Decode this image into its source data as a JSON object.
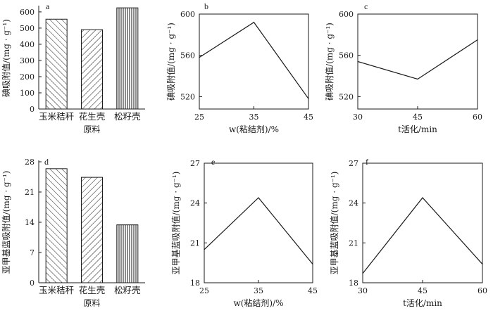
{
  "colors": {
    "ink": "#1a1a1a",
    "bar_fill": "#ffffff"
  },
  "chart_data": [
    {
      "panel": "a",
      "type": "bar",
      "categories": [
        "玉米秸秆",
        "花生壳",
        "松籽壳"
      ],
      "values": [
        555,
        490,
        625
      ],
      "patterns": [
        "diag-back",
        "diag-fwd",
        "vertical"
      ],
      "ylim": [
        0,
        630
      ],
      "yticks": [
        0,
        100,
        200,
        300,
        400,
        500,
        600
      ],
      "ylabel": "碘吸附值/(mg · g⁻¹)",
      "xlabel": "原料"
    },
    {
      "panel": "b",
      "type": "line",
      "x": [
        25,
        35,
        45
      ],
      "y": [
        558,
        592,
        518
      ],
      "xlim": [
        25,
        45
      ],
      "ylim": [
        508,
        600
      ],
      "xticks": [
        25,
        35,
        45
      ],
      "yticks": [
        520,
        560,
        600
      ],
      "ylabel": "碘吸附值/(mg · g⁻¹)",
      "xlabel": "w(粘结剂)/%"
    },
    {
      "panel": "c",
      "type": "line",
      "x": [
        30,
        45,
        60
      ],
      "y": [
        554,
        537,
        575
      ],
      "xlim": [
        30,
        60
      ],
      "ylim": [
        508,
        600
      ],
      "xticks": [
        30,
        45,
        60
      ],
      "yticks": [
        520,
        560,
        600
      ],
      "ylabel": "碘吸附值/(mg · g⁻¹)",
      "xlabel": "t活化/min"
    },
    {
      "panel": "d",
      "type": "bar",
      "categories": [
        "玉米秸秆",
        "花生壳",
        "松籽壳"
      ],
      "values": [
        26.4,
        24.4,
        13.4
      ],
      "patterns": [
        "diag-back",
        "diag-fwd",
        "vertical"
      ],
      "ylim": [
        0,
        28
      ],
      "yticks": [
        0,
        7,
        14,
        21,
        28
      ],
      "ylabel": "亚甲基蓝吸附值/(mg · g⁻¹)",
      "xlabel": "原料"
    },
    {
      "panel": "e",
      "type": "line",
      "x": [
        25,
        35,
        45
      ],
      "y": [
        20.5,
        24.4,
        19.4
      ],
      "xlim": [
        25,
        45
      ],
      "ylim": [
        18,
        27
      ],
      "xticks": [
        25,
        35,
        45
      ],
      "yticks": [
        18,
        21,
        24,
        27
      ],
      "ylabel": "亚甲基蓝吸附值/(mg · g⁻¹)",
      "xlabel": "w(粘结剂)/%"
    },
    {
      "panel": "f",
      "type": "line",
      "x": [
        30,
        45,
        60
      ],
      "y": [
        18.7,
        24.4,
        19.4
      ],
      "xlim": [
        30,
        60
      ],
      "ylim": [
        18,
        27
      ],
      "xticks": [
        30,
        45,
        60
      ],
      "yticks": [
        18,
        21,
        24,
        27
      ],
      "ylabel": "亚甲基蓝吸附值/(mg · g⁻¹)",
      "xlabel": "t活化/min"
    }
  ]
}
